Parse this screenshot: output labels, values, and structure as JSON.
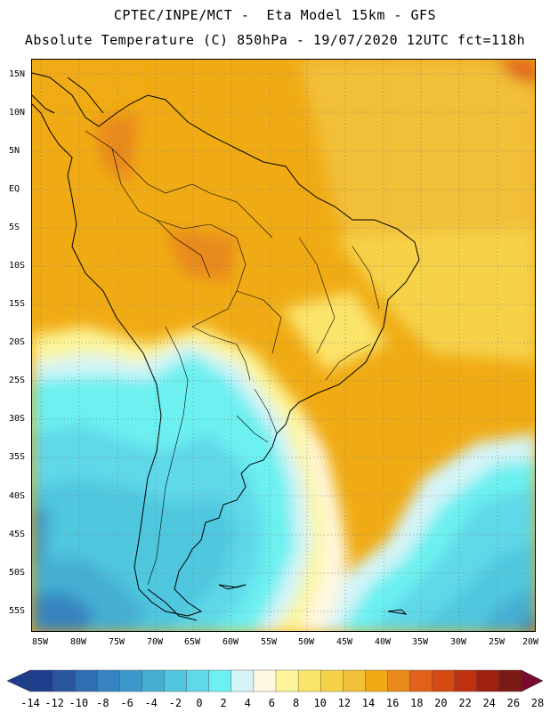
{
  "header": {
    "line1": "CPTEC/INPE/MCT -  Eta Model 15km - GFS",
    "line2": "Absolute Temperature (C) 850hPa - 19/07/2020 12UTC fct=118h"
  },
  "map": {
    "lat_labels": [
      "15N",
      "10N",
      "5N",
      "EQ",
      "5S",
      "10S",
      "15S",
      "20S",
      "25S",
      "30S",
      "35S",
      "40S",
      "45S",
      "50S",
      "55S"
    ],
    "lon_labels": [
      "85W",
      "80W",
      "75W",
      "70W",
      "65W",
      "60W",
      "55W",
      "50W",
      "45W",
      "40W",
      "35W",
      "30W",
      "25W",
      "20W"
    ]
  },
  "colorbar": {
    "labels": [
      "-14",
      "-12",
      "-10",
      "-8",
      "-6",
      "-4",
      "-2",
      "0",
      "2",
      "4",
      "6",
      "8",
      "10",
      "12",
      "14",
      "16",
      "18",
      "20",
      "22",
      "24",
      "26",
      "28"
    ],
    "colors": [
      "#1e3e8c",
      "#2857a0",
      "#2f6eb0",
      "#3683bf",
      "#3c98c8",
      "#45afd3",
      "#50c7df",
      "#5fd8e8",
      "#6cf0f0",
      "#d4f4f8",
      "#fff8e0",
      "#fdf59a",
      "#fbe46a",
      "#f6d24a",
      "#f2bf38",
      "#f0ab14",
      "#e8891a",
      "#e0621a",
      "#d44a10",
      "#bf3010",
      "#9d2010",
      "#7a1a14"
    ],
    "left_arrow_color": "#1e3e8c",
    "right_arrow_color": "#7a0a2c"
  }
}
